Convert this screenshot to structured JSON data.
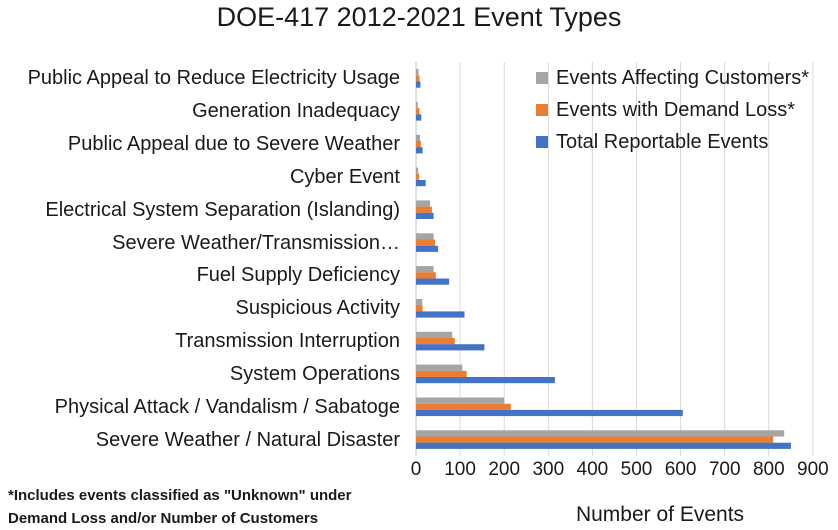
{
  "chart_data": {
    "type": "bar",
    "orientation": "horizontal",
    "title": "DOE-417 2012-2021 Event Types",
    "xlabel": "Number of Events",
    "ylabel": "",
    "xlim": [
      0,
      900
    ],
    "xticks": [
      0,
      100,
      200,
      300,
      400,
      500,
      600,
      700,
      800,
      900
    ],
    "grid": true,
    "legend_position": "top-right",
    "categories": [
      "Public Appeal to Reduce Electricity Usage",
      "Generation Inadequacy",
      "Public Appeal due to Severe Weather",
      "Cyber Event",
      "Electrical System Separation (Islanding)",
      "Severe Weather/Transmission…",
      "Fuel Supply Deficiency",
      "Suspicious Activity",
      "Transmission Interruption",
      "System Operations",
      "Physical Attack / Vandalism / Sabatoge",
      "Severe Weather / Natural Disaster"
    ],
    "series": [
      {
        "name": "Events Affecting Customers*",
        "color": "#a5a5a5",
        "values": [
          6,
          4,
          9,
          5,
          32,
          40,
          40,
          14,
          82,
          105,
          200,
          835
        ]
      },
      {
        "name": "Events with Demand Loss*",
        "color": "#ed7d31",
        "values": [
          8,
          8,
          11,
          7,
          36,
          43,
          45,
          15,
          88,
          115,
          215,
          810
        ]
      },
      {
        "name": "Total Reportable Events",
        "color": "#4472c4",
        "values": [
          10,
          12,
          15,
          22,
          40,
          50,
          75,
          110,
          155,
          315,
          605,
          850
        ]
      }
    ],
    "footnote_lines": [
      "*Includes events classified as \"Unknown\" under",
      "Demand Loss and/or Number of Customers"
    ]
  }
}
